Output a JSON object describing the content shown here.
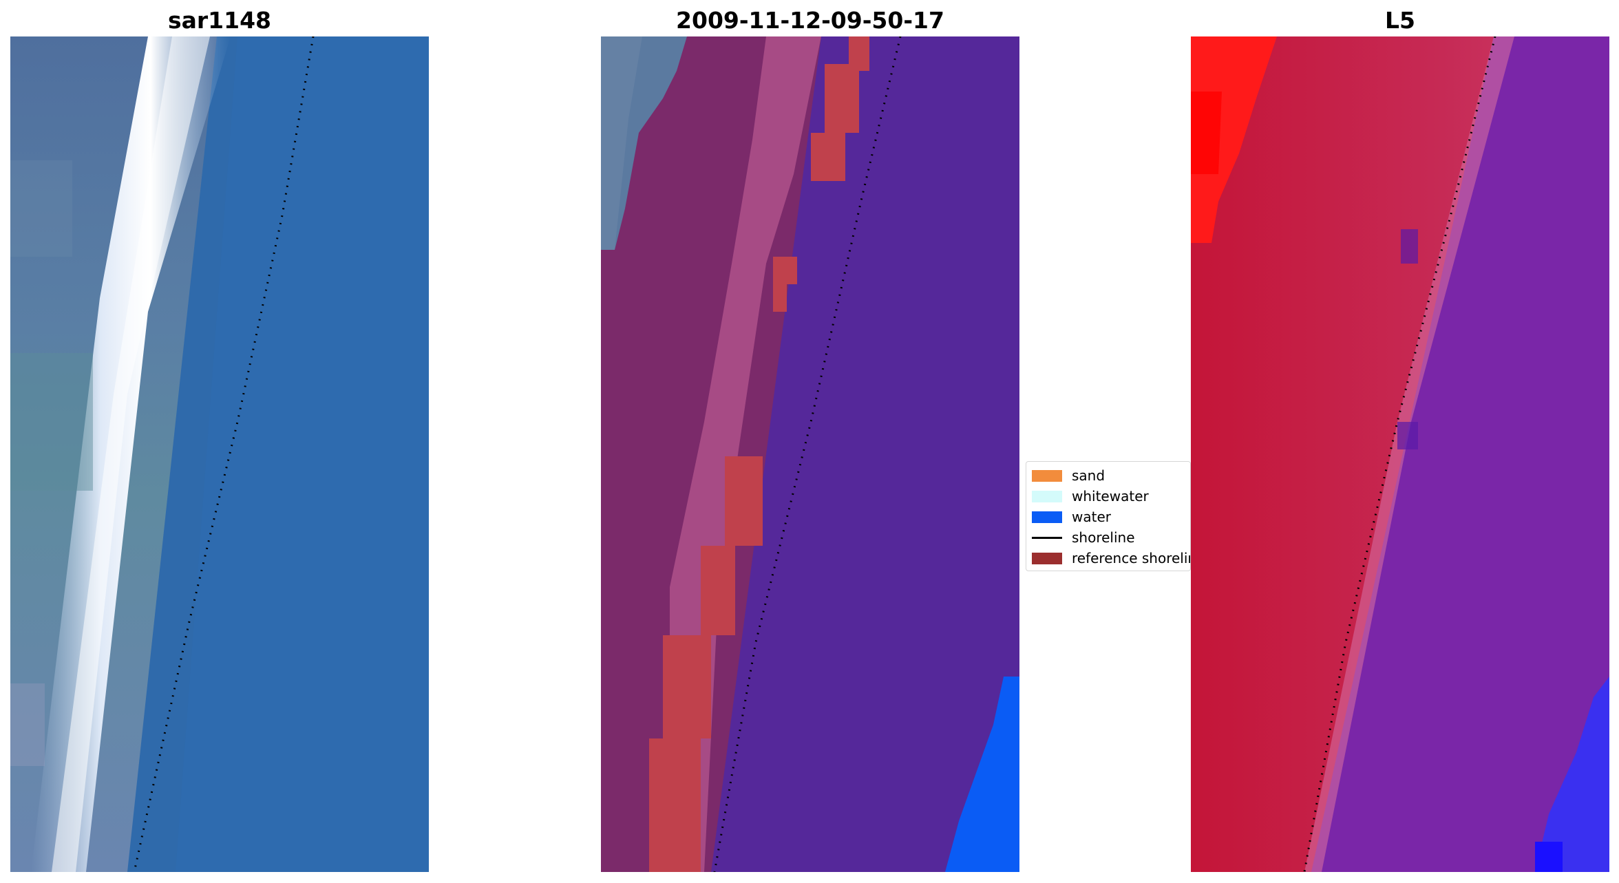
{
  "panels": [
    {
      "title": "sar1148",
      "image": "sar-rgb-image"
    },
    {
      "title": "2009-11-12-09-50-17",
      "image": "classified-image"
    },
    {
      "title": "L5",
      "image": "l5-image"
    }
  ],
  "legend": {
    "items": [
      {
        "label": "sand",
        "color": "#f28c3c",
        "kind": "patch"
      },
      {
        "label": "whitewater",
        "color": "#d4fbfb",
        "kind": "patch"
      },
      {
        "label": "water",
        "color": "#0a5cf5",
        "kind": "patch"
      },
      {
        "label": "shoreline",
        "color": "#000000",
        "kind": "line"
      },
      {
        "label": "reference shoreline",
        "color": "#9b2e2e",
        "kind": "patch"
      }
    ]
  },
  "colors": {
    "panel1_land": "#5b7aa3",
    "panel1_water": "#2e6aab",
    "panel1_surf": "#f2f5fb",
    "panel2_land": "#7b2a6a",
    "panel2_water": "#55289a",
    "panel2_red": "#c0414c",
    "panel3_land": "#c11f45",
    "panel3_water": "#7a26a8",
    "panel3_bright_red": "#ff1a1a",
    "panel3_blue": "#3a30f0"
  }
}
